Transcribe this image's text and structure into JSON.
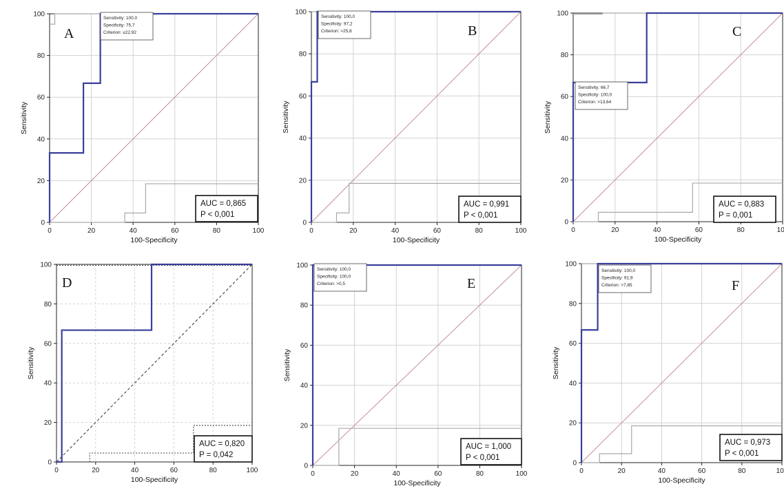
{
  "accent_colors": {
    "roc": "#3a3f9a",
    "diagonal": "#c48f95",
    "ci": "#a9a9a9",
    "frame": "#222222",
    "grid": "#d2d2d2"
  },
  "chart_data": [
    {
      "panel_label": "A",
      "type": "line",
      "xlabel": "100-Specificity",
      "ylabel": "Sensitivity",
      "xlim": [
        0,
        100
      ],
      "ylim": [
        0,
        100
      ],
      "ticks": [
        "0",
        "20",
        "40",
        "60",
        "80",
        "100"
      ],
      "grid": true,
      "roc": [
        [
          0,
          0
        ],
        [
          0,
          33.3
        ],
        [
          16.2,
          33.3
        ],
        [
          16.2,
          66.7
        ],
        [
          24.3,
          66.7
        ],
        [
          24.3,
          100
        ],
        [
          100,
          100
        ]
      ],
      "ci_upper": [
        [
          0,
          95
        ],
        [
          2.5,
          95
        ],
        [
          2.5,
          100
        ],
        [
          100,
          100
        ]
      ],
      "ci_lower": [
        [
          0,
          0
        ],
        [
          36,
          0
        ],
        [
          36,
          4.5
        ],
        [
          46,
          4.5
        ],
        [
          46,
          18.5
        ],
        [
          100,
          18.5
        ]
      ],
      "criterion_box": [
        "Sensitivity: 100,0",
        "Specificity: 75,7",
        "Criterion: ≤22,92"
      ],
      "auc_text": "AUC = 0,865",
      "p_text": "P < 0,001",
      "diagonal_style": "solid"
    },
    {
      "panel_label": "B",
      "type": "line",
      "xlabel": "100-Specificity",
      "ylabel": "Sensitivity",
      "xlim": [
        0,
        100
      ],
      "ylim": [
        0,
        100
      ],
      "ticks": [
        "0",
        "20",
        "40",
        "60",
        "80",
        "100"
      ],
      "grid": true,
      "roc": [
        [
          0,
          0
        ],
        [
          0,
          66.7
        ],
        [
          2.8,
          66.7
        ],
        [
          2.8,
          100
        ],
        [
          100,
          100
        ]
      ],
      "ci_upper": [
        [
          0,
          100
        ],
        [
          100,
          100
        ]
      ],
      "ci_lower": [
        [
          0,
          0
        ],
        [
          12,
          0
        ],
        [
          12,
          4.5
        ],
        [
          18,
          4.5
        ],
        [
          18,
          18.5
        ],
        [
          100,
          18.5
        ]
      ],
      "criterion_box": [
        "Sensitivity: 100,0",
        "Specificity: 97,2",
        "Criterion: >25,8"
      ],
      "auc_text": "AUC = 0,991",
      "p_text": "P < 0,001",
      "diagonal_style": "solid"
    },
    {
      "panel_label": "C",
      "type": "line",
      "xlabel": "100-Specificity",
      "ylabel": "Sensitivity",
      "xlim": [
        0,
        100
      ],
      "ylim": [
        0,
        100
      ],
      "ticks": [
        "0",
        "20",
        "40",
        "60",
        "80",
        "100"
      ],
      "grid": true,
      "roc": [
        [
          0,
          0
        ],
        [
          0,
          66.7
        ],
        [
          35.1,
          66.7
        ],
        [
          35.1,
          100
        ],
        [
          100,
          100
        ]
      ],
      "ci_upper": [
        [
          0,
          99.5
        ],
        [
          14,
          99.5
        ],
        [
          14,
          100
        ],
        [
          100,
          100
        ]
      ],
      "ci_lower": [
        [
          0,
          0
        ],
        [
          12,
          0
        ],
        [
          12,
          4.5
        ],
        [
          57,
          4.5
        ],
        [
          57,
          18.5
        ],
        [
          100,
          18.5
        ]
      ],
      "criterion_box": [
        "Sensitivity: 66,7",
        "Specificity: 100,0",
        "Criterion: >13,64"
      ],
      "auc_text": "AUC = 0,883",
      "p_text": "P = 0,001",
      "diagonal_style": "solid"
    },
    {
      "panel_label": "D",
      "type": "line",
      "xlabel": "100-Specificity",
      "ylabel": "Sensitivity",
      "xlim": [
        0,
        100
      ],
      "ylim": [
        0,
        100
      ],
      "ticks": [
        "0",
        "20",
        "40",
        "60",
        "80",
        "100"
      ],
      "grid": true,
      "roc": [
        [
          0,
          0
        ],
        [
          2.7,
          0
        ],
        [
          2.7,
          66.7
        ],
        [
          48.6,
          66.7
        ],
        [
          48.6,
          100
        ],
        [
          100,
          100
        ]
      ],
      "ci_upper": [
        [
          0,
          99.5
        ],
        [
          100,
          99.5
        ]
      ],
      "ci_lower": [
        [
          0,
          0
        ],
        [
          17,
          0
        ],
        [
          17,
          4.5
        ],
        [
          70,
          4.5
        ],
        [
          70,
          18.5
        ],
        [
          100,
          18.5
        ]
      ],
      "criterion_box": [],
      "auc_text": "AUC = 0,820",
      "p_text": "P = 0,042",
      "diagonal_style": "dashed"
    },
    {
      "panel_label": "E",
      "type": "line",
      "xlabel": "100-Specificity",
      "ylabel": "Sensitivity",
      "xlim": [
        0,
        100
      ],
      "ylim": [
        0,
        100
      ],
      "ticks": [
        "0",
        "20",
        "40",
        "60",
        "80",
        "100"
      ],
      "grid": true,
      "roc": [
        [
          0,
          0
        ],
        [
          0,
          100
        ],
        [
          100,
          100
        ]
      ],
      "ci_upper": [
        [
          0,
          100
        ],
        [
          100,
          100
        ]
      ],
      "ci_lower": [
        [
          0,
          0
        ],
        [
          12.5,
          0
        ],
        [
          12.5,
          18.5
        ],
        [
          100,
          18.5
        ]
      ],
      "criterion_box": [
        "Sensitivity: 100,0",
        "Specificity: 100,0",
        "Criterion: >0,5"
      ],
      "auc_text": "AUC = 1,000",
      "p_text": "P < 0,001",
      "diagonal_style": "solid"
    },
    {
      "panel_label": "F",
      "type": "line",
      "xlabel": "100-Specificity",
      "ylabel": "Sensitivity",
      "xlim": [
        0,
        100
      ],
      "ylim": [
        0,
        100
      ],
      "ticks": [
        "0",
        "20",
        "40",
        "60",
        "80",
        "100"
      ],
      "grid": true,
      "roc": [
        [
          0,
          0
        ],
        [
          0,
          66.7
        ],
        [
          8.1,
          66.7
        ],
        [
          8.1,
          100
        ],
        [
          100,
          100
        ]
      ],
      "ci_upper": [
        [
          0,
          100
        ],
        [
          100,
          100
        ]
      ],
      "ci_lower": [
        [
          0,
          0
        ],
        [
          9,
          0
        ],
        [
          9,
          4.5
        ],
        [
          25,
          4.5
        ],
        [
          25,
          18.5
        ],
        [
          100,
          18.5
        ]
      ],
      "criterion_box": [
        "Sensitivity: 100,0",
        "Specificity: 91,9",
        "Criterion: >7,85"
      ],
      "auc_text": "AUC = 0,973",
      "p_text": "P < 0,001",
      "diagonal_style": "solid"
    }
  ]
}
